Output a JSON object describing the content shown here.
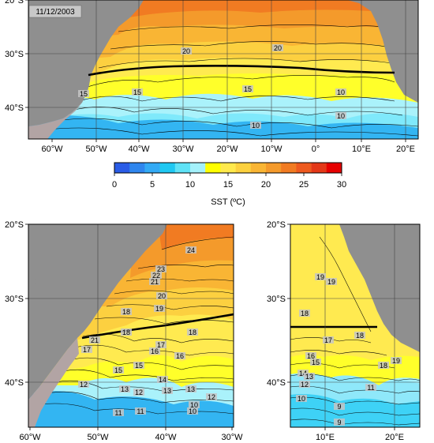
{
  "date_label": "11/12/2003",
  "colorbar": {
    "label": "SST (ºC)",
    "ticks": [
      "0",
      "5",
      "10",
      "15",
      "20",
      "25",
      "30"
    ],
    "colors": [
      "#2a5ce6",
      "#2f86ee",
      "#33aaf5",
      "#1fc8f2",
      "#5fe2f6",
      "#a4f1fb",
      "#ffff00",
      "#ffe94c",
      "#fcd13e",
      "#f9b534",
      "#f49a2b",
      "#f17b22",
      "#ee5a1f",
      "#e43818",
      "#e60000"
    ]
  },
  "maps": [
    {
      "id": "south-atlantic",
      "lon_ticks": [
        "60°W",
        "50°W",
        "40°W",
        "30°W",
        "20°W",
        "10°W",
        "0°",
        "10°E",
        "20°E"
      ],
      "lat_ticks": [
        "20°S",
        "30°S",
        "40°S"
      ],
      "contour_labels": [
        "20",
        "20",
        "15",
        "15",
        "15",
        "10",
        "10",
        "10"
      ]
    },
    {
      "id": "west",
      "lon_ticks": [
        "60°W",
        "50°W",
        "40°W",
        "30°W"
      ],
      "lat_ticks": [
        "20°S",
        "30°S",
        "40°S"
      ],
      "contour_labels": [
        "24",
        "23",
        "22",
        "21",
        "20",
        "19",
        "18",
        "18",
        "21",
        "18",
        "17",
        "17",
        "16",
        "16",
        "15",
        "15",
        "14",
        "13",
        "13",
        "13",
        "12",
        "12",
        "11",
        "11",
        "10",
        "10",
        "12"
      ]
    },
    {
      "id": "east",
      "lon_ticks": [
        "10°E",
        "20°E"
      ],
      "lat_ticks": [
        "20°S",
        "30°S",
        "40°S"
      ],
      "contour_labels": [
        "19",
        "19",
        "18",
        "18",
        "17",
        "16",
        "15",
        "14",
        "13",
        "12",
        "11",
        "10",
        "19",
        "18",
        "9",
        "9"
      ]
    }
  ]
}
